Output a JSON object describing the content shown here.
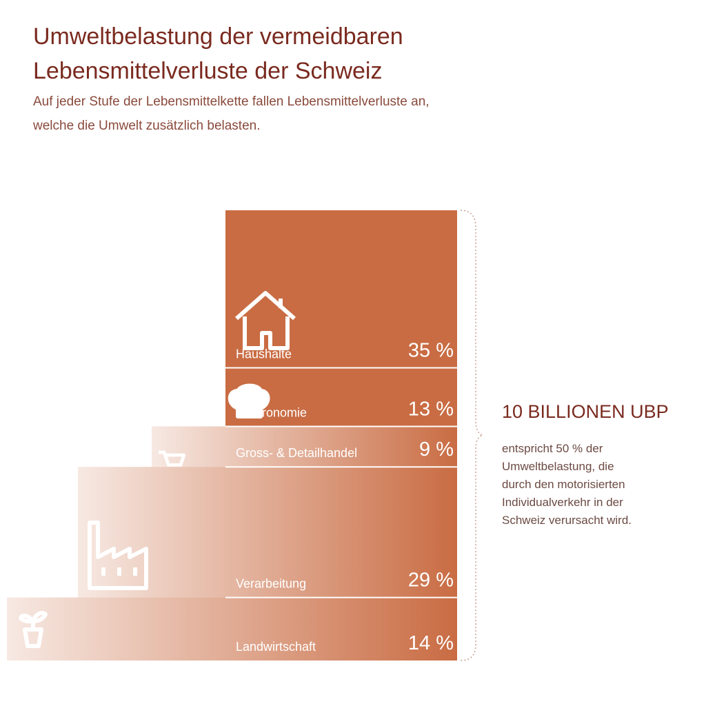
{
  "chart_data": {
    "type": "stacked-bar",
    "title": [
      "Umweltbelastung der vermeidbaren",
      "Lebensmittelverluste der Schweiz"
    ],
    "subtitle": [
      "Auf jeder Stufe der Lebensmittelkette fallen Lebensmittelverluste an,",
      "welche die Umwelt zusätzlich belasten."
    ],
    "categories": [
      "Haushalte",
      "Gastronomie",
      "Gross- & Detailhandel",
      "Verarbeitung",
      "Landwirtschaft"
    ],
    "values": [
      35,
      13,
      9,
      29,
      14
    ],
    "value_labels": [
      "35 %",
      "13 %",
      "9 %",
      "29 %",
      "14 %"
    ],
    "color": "#c96c43",
    "total_label": "10 BILLIONEN UBP",
    "note": [
      "entspricht 50 % der",
      "Umweltbelastung, die",
      "durch den motorisierten",
      "Individualverkehr in der",
      "Schweiz verursacht wird."
    ]
  }
}
